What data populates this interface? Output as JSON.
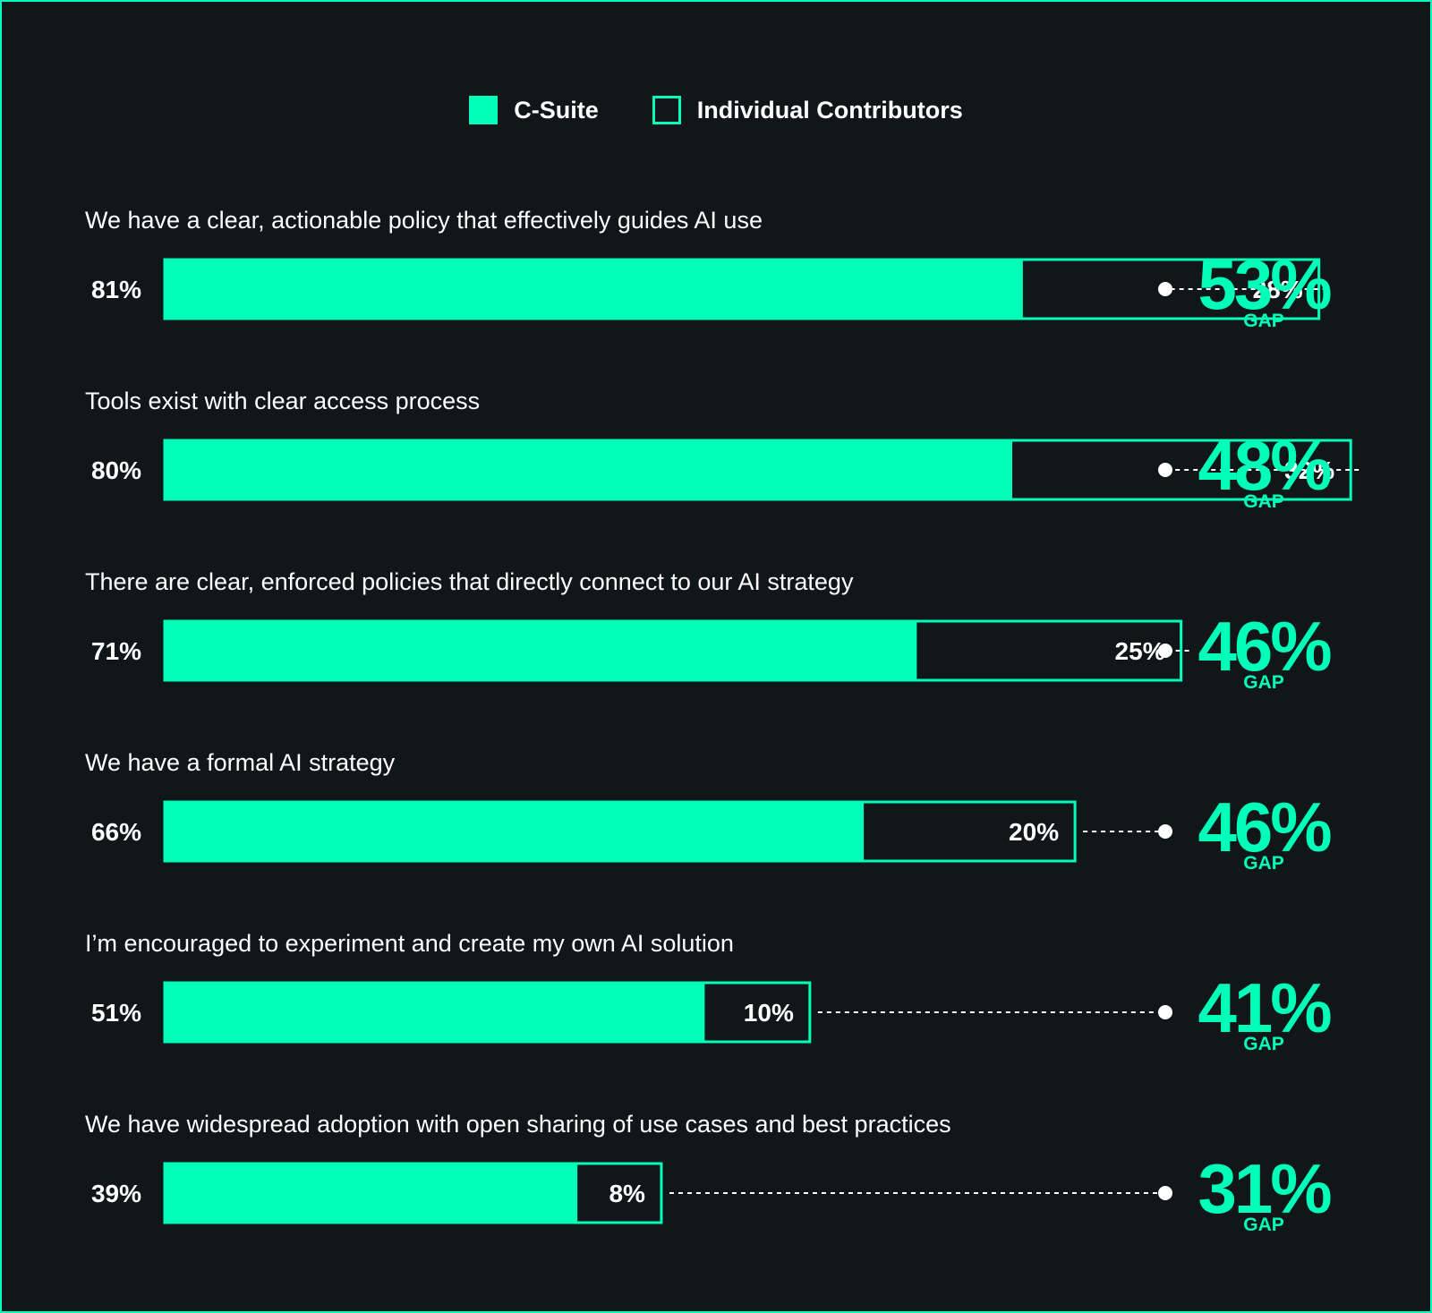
{
  "chart_data": {
    "type": "bar",
    "orientation": "horizontal",
    "legend": {
      "position": "top-center",
      "entries": [
        "C-Suite",
        "Individual Contributors"
      ]
    },
    "xlim": [
      0,
      100
    ],
    "unit": "%",
    "gap_label": "GAP",
    "categories": [
      "We have a clear, actionable policy that effectively guides AI use",
      "Tools exist with clear access process",
      "There are clear, enforced policies that directly connect to our AI strategy",
      "We have a formal AI strategy",
      "I’m encouraged to experiment and create my own AI solution",
      "We have widespread adoption with open sharing of use cases and best practices"
    ],
    "series": [
      {
        "name": "C-Suite",
        "values": [
          81,
          80,
          71,
          66,
          51,
          39
        ]
      },
      {
        "name": "Individual Contributors",
        "values": [
          28,
          32,
          25,
          20,
          10,
          8
        ]
      }
    ],
    "gaps": [
      53,
      48,
      46,
      46,
      41,
      31
    ]
  },
  "colors": {
    "accent": "#00ffb8",
    "background": "#111619",
    "text": "#ffffff",
    "connector": "#ffffff"
  }
}
